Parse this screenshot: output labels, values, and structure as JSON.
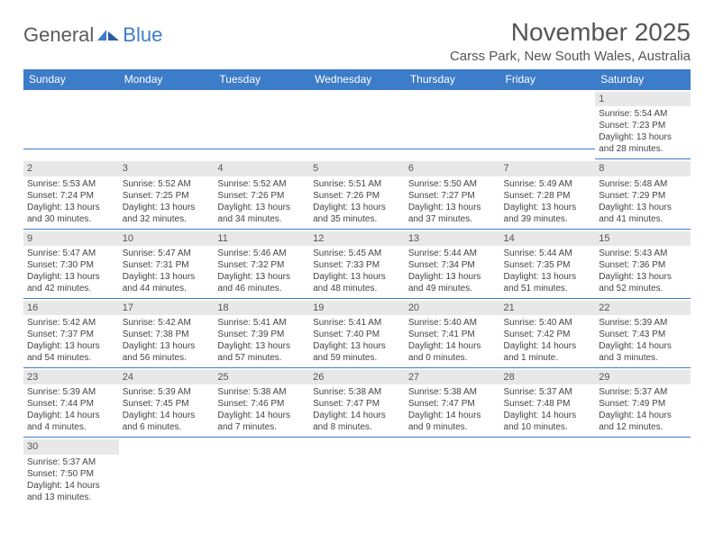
{
  "logo": {
    "text1": "General",
    "text2": "Blue"
  },
  "title": "November 2025",
  "location": "Carss Park, New South Wales, Australia",
  "dayHeaders": [
    "Sunday",
    "Monday",
    "Tuesday",
    "Wednesday",
    "Thursday",
    "Friday",
    "Saturday"
  ],
  "colors": {
    "header_bg": "#3d7cc9",
    "header_text": "#ffffff",
    "cell_border": "#3d7cc9",
    "daynum_bg": "#e8e8e8",
    "body_text": "#444"
  },
  "weeks": [
    [
      null,
      null,
      null,
      null,
      null,
      null,
      {
        "n": "1",
        "sr": "Sunrise: 5:54 AM",
        "ss": "Sunset: 7:23 PM",
        "dl": "Daylight: 13 hours and 28 minutes."
      }
    ],
    [
      {
        "n": "2",
        "sr": "Sunrise: 5:53 AM",
        "ss": "Sunset: 7:24 PM",
        "dl": "Daylight: 13 hours and 30 minutes."
      },
      {
        "n": "3",
        "sr": "Sunrise: 5:52 AM",
        "ss": "Sunset: 7:25 PM",
        "dl": "Daylight: 13 hours and 32 minutes."
      },
      {
        "n": "4",
        "sr": "Sunrise: 5:52 AM",
        "ss": "Sunset: 7:26 PM",
        "dl": "Daylight: 13 hours and 34 minutes."
      },
      {
        "n": "5",
        "sr": "Sunrise: 5:51 AM",
        "ss": "Sunset: 7:26 PM",
        "dl": "Daylight: 13 hours and 35 minutes."
      },
      {
        "n": "6",
        "sr": "Sunrise: 5:50 AM",
        "ss": "Sunset: 7:27 PM",
        "dl": "Daylight: 13 hours and 37 minutes."
      },
      {
        "n": "7",
        "sr": "Sunrise: 5:49 AM",
        "ss": "Sunset: 7:28 PM",
        "dl": "Daylight: 13 hours and 39 minutes."
      },
      {
        "n": "8",
        "sr": "Sunrise: 5:48 AM",
        "ss": "Sunset: 7:29 PM",
        "dl": "Daylight: 13 hours and 41 minutes."
      }
    ],
    [
      {
        "n": "9",
        "sr": "Sunrise: 5:47 AM",
        "ss": "Sunset: 7:30 PM",
        "dl": "Daylight: 13 hours and 42 minutes."
      },
      {
        "n": "10",
        "sr": "Sunrise: 5:47 AM",
        "ss": "Sunset: 7:31 PM",
        "dl": "Daylight: 13 hours and 44 minutes."
      },
      {
        "n": "11",
        "sr": "Sunrise: 5:46 AM",
        "ss": "Sunset: 7:32 PM",
        "dl": "Daylight: 13 hours and 46 minutes."
      },
      {
        "n": "12",
        "sr": "Sunrise: 5:45 AM",
        "ss": "Sunset: 7:33 PM",
        "dl": "Daylight: 13 hours and 48 minutes."
      },
      {
        "n": "13",
        "sr": "Sunrise: 5:44 AM",
        "ss": "Sunset: 7:34 PM",
        "dl": "Daylight: 13 hours and 49 minutes."
      },
      {
        "n": "14",
        "sr": "Sunrise: 5:44 AM",
        "ss": "Sunset: 7:35 PM",
        "dl": "Daylight: 13 hours and 51 minutes."
      },
      {
        "n": "15",
        "sr": "Sunrise: 5:43 AM",
        "ss": "Sunset: 7:36 PM",
        "dl": "Daylight: 13 hours and 52 minutes."
      }
    ],
    [
      {
        "n": "16",
        "sr": "Sunrise: 5:42 AM",
        "ss": "Sunset: 7:37 PM",
        "dl": "Daylight: 13 hours and 54 minutes."
      },
      {
        "n": "17",
        "sr": "Sunrise: 5:42 AM",
        "ss": "Sunset: 7:38 PM",
        "dl": "Daylight: 13 hours and 56 minutes."
      },
      {
        "n": "18",
        "sr": "Sunrise: 5:41 AM",
        "ss": "Sunset: 7:39 PM",
        "dl": "Daylight: 13 hours and 57 minutes."
      },
      {
        "n": "19",
        "sr": "Sunrise: 5:41 AM",
        "ss": "Sunset: 7:40 PM",
        "dl": "Daylight: 13 hours and 59 minutes."
      },
      {
        "n": "20",
        "sr": "Sunrise: 5:40 AM",
        "ss": "Sunset: 7:41 PM",
        "dl": "Daylight: 14 hours and 0 minutes."
      },
      {
        "n": "21",
        "sr": "Sunrise: 5:40 AM",
        "ss": "Sunset: 7:42 PM",
        "dl": "Daylight: 14 hours and 1 minute."
      },
      {
        "n": "22",
        "sr": "Sunrise: 5:39 AM",
        "ss": "Sunset: 7:43 PM",
        "dl": "Daylight: 14 hours and 3 minutes."
      }
    ],
    [
      {
        "n": "23",
        "sr": "Sunrise: 5:39 AM",
        "ss": "Sunset: 7:44 PM",
        "dl": "Daylight: 14 hours and 4 minutes."
      },
      {
        "n": "24",
        "sr": "Sunrise: 5:39 AM",
        "ss": "Sunset: 7:45 PM",
        "dl": "Daylight: 14 hours and 6 minutes."
      },
      {
        "n": "25",
        "sr": "Sunrise: 5:38 AM",
        "ss": "Sunset: 7:46 PM",
        "dl": "Daylight: 14 hours and 7 minutes."
      },
      {
        "n": "26",
        "sr": "Sunrise: 5:38 AM",
        "ss": "Sunset: 7:47 PM",
        "dl": "Daylight: 14 hours and 8 minutes."
      },
      {
        "n": "27",
        "sr": "Sunrise: 5:38 AM",
        "ss": "Sunset: 7:47 PM",
        "dl": "Daylight: 14 hours and 9 minutes."
      },
      {
        "n": "28",
        "sr": "Sunrise: 5:37 AM",
        "ss": "Sunset: 7:48 PM",
        "dl": "Daylight: 14 hours and 10 minutes."
      },
      {
        "n": "29",
        "sr": "Sunrise: 5:37 AM",
        "ss": "Sunset: 7:49 PM",
        "dl": "Daylight: 14 hours and 12 minutes."
      }
    ],
    [
      {
        "n": "30",
        "sr": "Sunrise: 5:37 AM",
        "ss": "Sunset: 7:50 PM",
        "dl": "Daylight: 14 hours and 13 minutes."
      },
      null,
      null,
      null,
      null,
      null,
      null
    ]
  ]
}
